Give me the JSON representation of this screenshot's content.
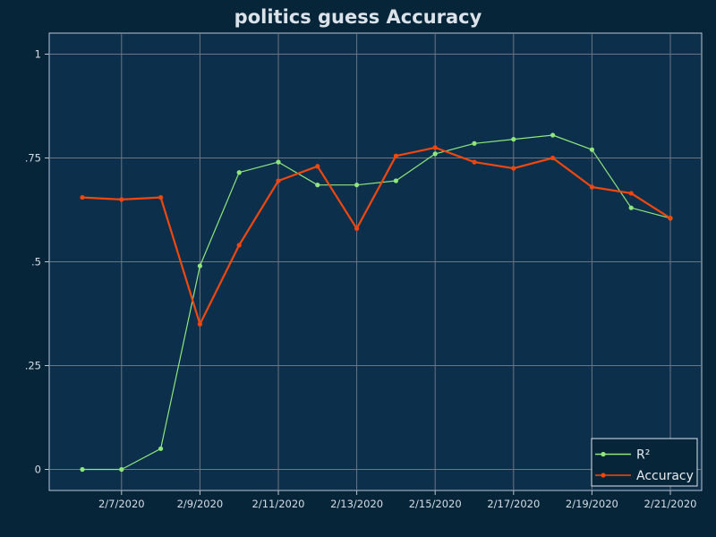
{
  "chart_data": {
    "type": "line",
    "title": "politics guess Accuracy",
    "xlabel": "",
    "ylabel": "",
    "x": [
      "2/6/2020",
      "2/7/2020",
      "2/8/2020",
      "2/9/2020",
      "2/10/2020",
      "2/11/2020",
      "2/12/2020",
      "2/13/2020",
      "2/14/2020",
      "2/15/2020",
      "2/16/2020",
      "2/17/2020",
      "2/18/2020",
      "2/19/2020",
      "2/20/2020",
      "2/21/2020"
    ],
    "x_tick_labels": [
      "2/7/2020",
      "2/9/2020",
      "2/11/2020",
      "2/13/2020",
      "2/15/2020",
      "2/17/2020",
      "2/19/2020",
      "2/21/2020"
    ],
    "y_tick_labels": [
      "0",
      ".25",
      ".5",
      ".75",
      "1"
    ],
    "y_tick_values": [
      0,
      0.25,
      0.5,
      0.75,
      1
    ],
    "ylim": [
      -0.05,
      1.05
    ],
    "grid": true,
    "legend_position": "bottom-right",
    "series": [
      {
        "name": "R²",
        "color": "#8ee67c",
        "values": [
          0.0,
          0.0,
          0.05,
          0.49,
          0.715,
          0.74,
          0.685,
          0.685,
          0.695,
          0.76,
          0.785,
          0.795,
          0.805,
          0.77,
          0.63,
          0.605
        ]
      },
      {
        "name": "Accuracy",
        "color": "#f0470f",
        "values": [
          0.655,
          0.65,
          0.655,
          0.35,
          0.54,
          0.695,
          0.73,
          0.58,
          0.755,
          0.775,
          0.74,
          0.725,
          0.75,
          0.68,
          0.665,
          0.605
        ]
      }
    ]
  }
}
